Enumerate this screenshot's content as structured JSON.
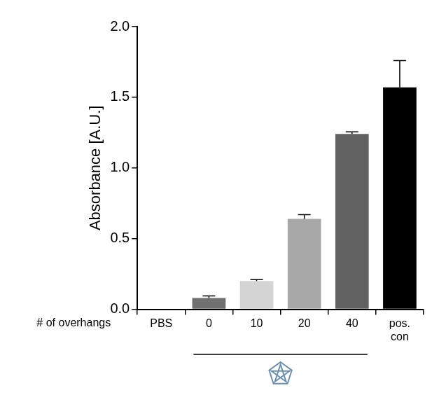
{
  "chart_data": {
    "type": "bar",
    "y_label": "Absorbance [A.U.]",
    "x_label": "# of overhangs",
    "categories": [
      "PBS",
      "0",
      "10",
      "20",
      "40",
      "pos. con"
    ],
    "values": [
      0,
      0.08,
      0.2,
      0.64,
      1.24,
      1.57
    ],
    "errors": [
      0,
      0.015,
      0.01,
      0.03,
      0.015,
      0.19
    ],
    "colors": [
      "#808080",
      "#707070",
      "#d4d4d4",
      "#a8a8a8",
      "#626262",
      "#000000"
    ],
    "ylim": [
      0,
      2
    ],
    "yticks": [
      {
        "value": 0,
        "label": "0.0"
      },
      {
        "value": 0.5,
        "label": "0.5"
      },
      {
        "value": 1,
        "label": "1.0"
      },
      {
        "value": 1.5,
        "label": "1.5"
      },
      {
        "value": 2,
        "label": "2.0"
      }
    ],
    "grid": false
  }
}
